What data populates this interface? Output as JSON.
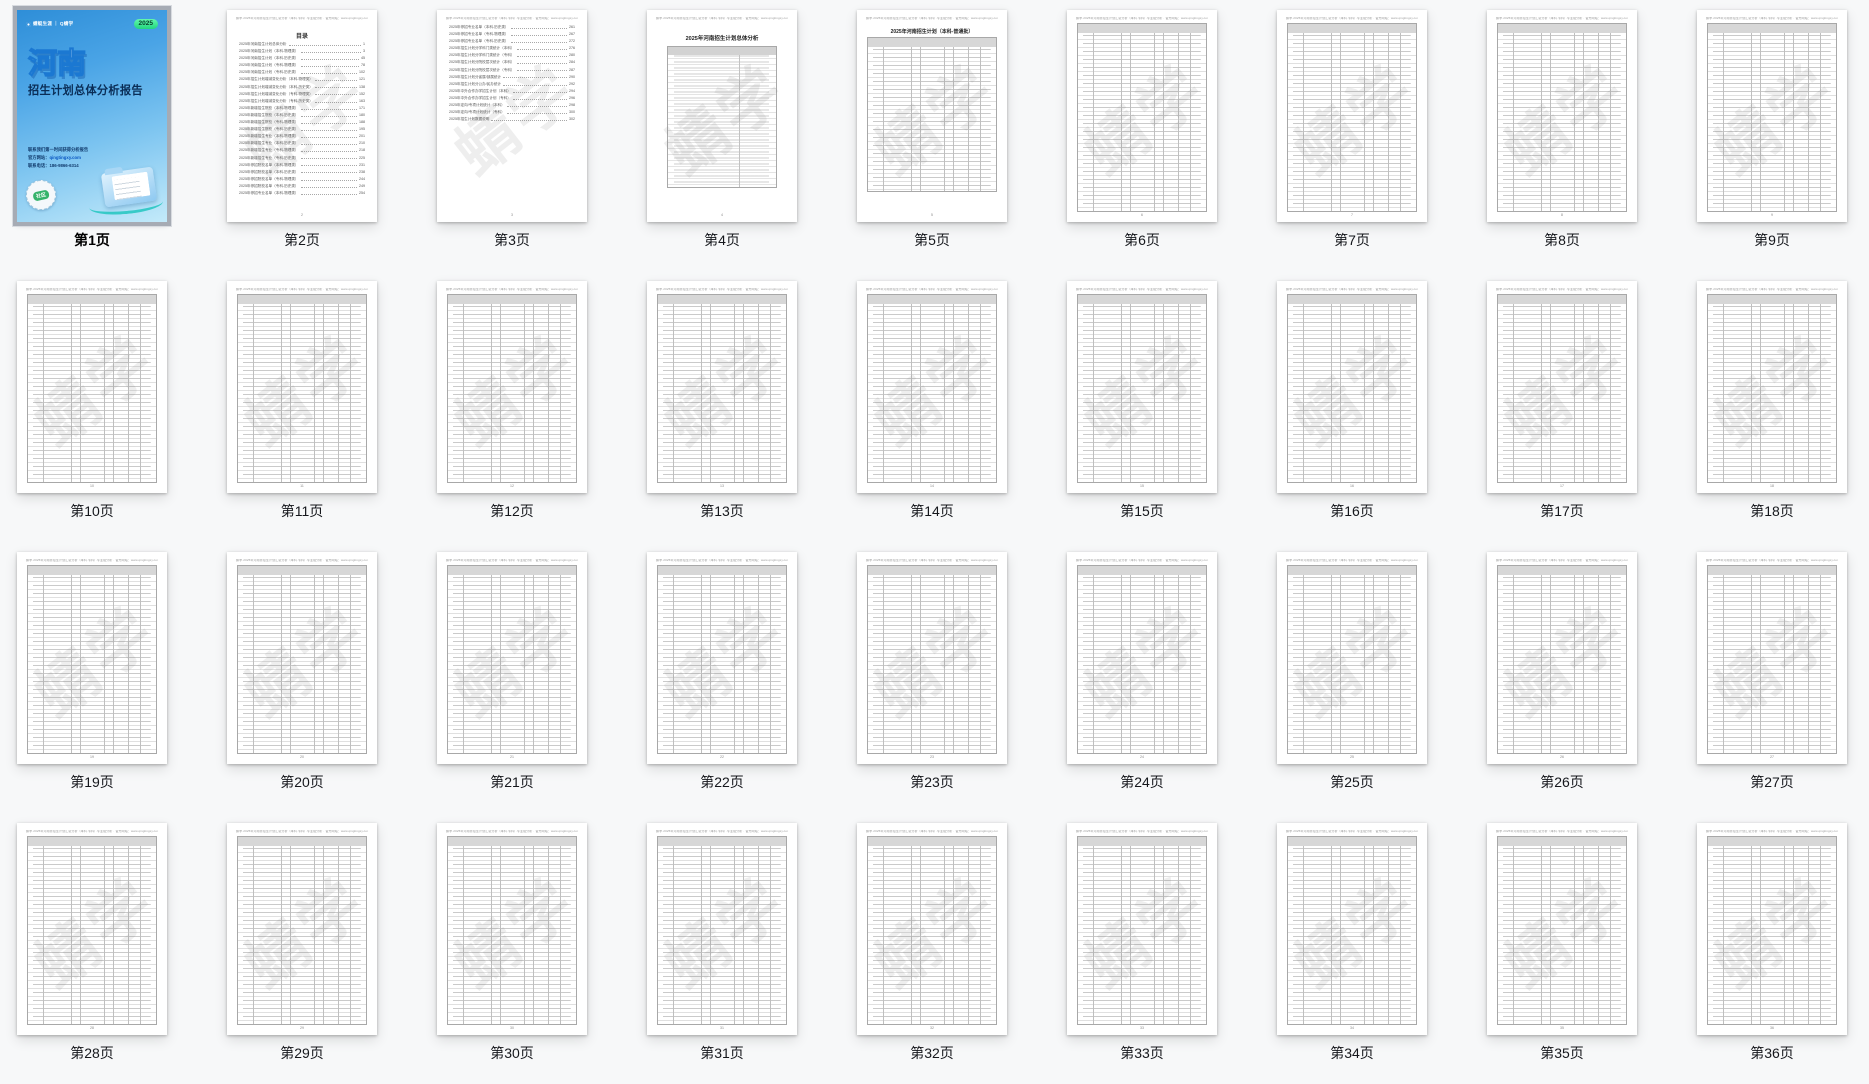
{
  "view": {
    "selected_page": 1
  },
  "watermark": "蜻学",
  "doc_header_line": "蜻学·2025年河南省招生计划汇总分析（本科·专科）·专业组分析 · 官方网站：www.qingtingxy.com",
  "cover": {
    "brand": "蜻蜓生涯 ｜ Q蜻学",
    "year_badge": "2025",
    "title": "河南",
    "subtitle": "招生计划总体分析报告",
    "contact_line1": "联系我们第一时间获得分析报告",
    "website_label": "官方网站：",
    "website": "qingtingxy.com",
    "phone_label": "联系电话：",
    "phone": "186-9866-6314",
    "stamp_text": "社区",
    "colors": {
      "cover_top": "#2e8ed8",
      "cover_bottom": "#c3eafa",
      "badge_green": "#22d67e",
      "title_stroke": "#1b78d2",
      "subtitle_navy": "#0a2d56"
    }
  },
  "toc": {
    "title": "目录",
    "entries": [
      {
        "text": "2025年河南招生计划总体分析",
        "page": "1"
      },
      {
        "text": "2025年河南招生计划（本科-物理类）",
        "page": "3"
      },
      {
        "text": "2025年河南招生计划（本科-历史类）",
        "page": "45"
      },
      {
        "text": "2025年河南招生计划（专科-物理类）",
        "page": "78"
      },
      {
        "text": "2025年河南招生计划（专科-历史类）",
        "page": "102"
      },
      {
        "text": "2025年招生计划增减变化分析（本科-物理类）",
        "page": "121"
      },
      {
        "text": "2025年招生计划增减变化分析（本科-历史类）",
        "page": "138"
      },
      {
        "text": "2025年招生计划增减变化分析（专科-物理类）",
        "page": "152"
      },
      {
        "text": "2025年招生计划增减变化分析（专科-历史类）",
        "page": "163"
      },
      {
        "text": "2025年新增招生院校（本科-物理类）",
        "page": "171"
      },
      {
        "text": "2025年新增招生院校（本科-历史类）",
        "page": "180"
      },
      {
        "text": "2025年新增招生院校（专科-物理类）",
        "page": "188"
      },
      {
        "text": "2025年新增招生院校（专科-历史类）",
        "page": "195"
      },
      {
        "text": "2025年新增招生专业（本科-物理类）",
        "page": "201"
      },
      {
        "text": "2025年新增招生专业（本科-历史类）",
        "page": "210"
      },
      {
        "text": "2025年新增招生专业（专科-物理类）",
        "page": "218"
      },
      {
        "text": "2025年新增招生专业（专科-历史类）",
        "page": "225"
      },
      {
        "text": "2025年停招院校名单（本科-物理类）",
        "page": "231"
      },
      {
        "text": "2025年停招院校名单（本科-历史类）",
        "page": "238"
      },
      {
        "text": "2025年停招院校名单（专科-物理类）",
        "page": "244"
      },
      {
        "text": "2025年停招院校名单（专科-历史类）",
        "page": "249"
      },
      {
        "text": "2025年停招专业名单（本科-物理类）",
        "page": "254"
      }
    ],
    "entries_p3": [
      {
        "text": "2025年停招专业名单（本科-历史类）",
        "page": "261"
      },
      {
        "text": "2025年停招专业名单（专科-物理类）",
        "page": "267"
      },
      {
        "text": "2025年停招专业名单（专科-历史类）",
        "page": "272"
      },
      {
        "text": "2025年招生计划分学科门类统计（本科）",
        "page": "276"
      },
      {
        "text": "2025年招生计划分学科门类统计（专科）",
        "page": "280"
      },
      {
        "text": "2025年招生计划分院校层次统计（本科）",
        "page": "284"
      },
      {
        "text": "2025年招生计划分院校层次统计（专科）",
        "page": "287"
      },
      {
        "text": "2025年招生计划分省属/部属统计",
        "page": "290"
      },
      {
        "text": "2025年招生计划分公办/民办统计",
        "page": "292"
      },
      {
        "text": "2025年中外合作办学招生计划（本科）",
        "page": "294"
      },
      {
        "text": "2025年中外合作办学招生计划（专科）",
        "page": "296"
      },
      {
        "text": "2025年定向/专项计划统计（本科）",
        "page": "298"
      },
      {
        "text": "2025年定向/专项计划统计（专科）",
        "page": "300"
      },
      {
        "text": "2025年招生计划数据说明",
        "page": "302"
      }
    ]
  },
  "summary_page": {
    "title": "2025年河南招生计划总体分析",
    "col1": "项目",
    "col2": "2025计划数"
  },
  "table5_title": "2025年河南招生计划（本科-普通批）",
  "pages": [
    {
      "num": 1,
      "label": "第1页",
      "kind": "cover"
    },
    {
      "num": 2,
      "label": "第2页",
      "kind": "toc"
    },
    {
      "num": 3,
      "label": "第3页",
      "kind": "toc2"
    },
    {
      "num": 4,
      "label": "第4页",
      "kind": "summary"
    },
    {
      "num": 5,
      "label": "第5页",
      "kind": "table5"
    },
    {
      "num": 6,
      "label": "第6页",
      "kind": "table"
    },
    {
      "num": 7,
      "label": "第7页",
      "kind": "table"
    },
    {
      "num": 8,
      "label": "第8页",
      "kind": "table"
    },
    {
      "num": 9,
      "label": "第9页",
      "kind": "table"
    },
    {
      "num": 10,
      "label": "第10页",
      "kind": "table"
    },
    {
      "num": 11,
      "label": "第11页",
      "kind": "table"
    },
    {
      "num": 12,
      "label": "第12页",
      "kind": "table"
    },
    {
      "num": 13,
      "label": "第13页",
      "kind": "table"
    },
    {
      "num": 14,
      "label": "第14页",
      "kind": "table"
    },
    {
      "num": 15,
      "label": "第15页",
      "kind": "table"
    },
    {
      "num": 16,
      "label": "第16页",
      "kind": "table"
    },
    {
      "num": 17,
      "label": "第17页",
      "kind": "table"
    },
    {
      "num": 18,
      "label": "第18页",
      "kind": "table"
    },
    {
      "num": 19,
      "label": "第19页",
      "kind": "table"
    },
    {
      "num": 20,
      "label": "第20页",
      "kind": "table"
    },
    {
      "num": 21,
      "label": "第21页",
      "kind": "table"
    },
    {
      "num": 22,
      "label": "第22页",
      "kind": "table"
    },
    {
      "num": 23,
      "label": "第23页",
      "kind": "table"
    },
    {
      "num": 24,
      "label": "第24页",
      "kind": "table"
    },
    {
      "num": 25,
      "label": "第25页",
      "kind": "table"
    },
    {
      "num": 26,
      "label": "第26页",
      "kind": "table"
    },
    {
      "num": 27,
      "label": "第27页",
      "kind": "table"
    },
    {
      "num": 28,
      "label": "第28页",
      "kind": "table"
    },
    {
      "num": 29,
      "label": "第29页",
      "kind": "table"
    },
    {
      "num": 30,
      "label": "第30页",
      "kind": "table"
    },
    {
      "num": 31,
      "label": "第31页",
      "kind": "table"
    },
    {
      "num": 32,
      "label": "第32页",
      "kind": "table"
    },
    {
      "num": 33,
      "label": "第33页",
      "kind": "table"
    },
    {
      "num": 34,
      "label": "第34页",
      "kind": "table"
    },
    {
      "num": 35,
      "label": "第35页",
      "kind": "table"
    },
    {
      "num": 36,
      "label": "第36页",
      "kind": "table"
    }
  ]
}
